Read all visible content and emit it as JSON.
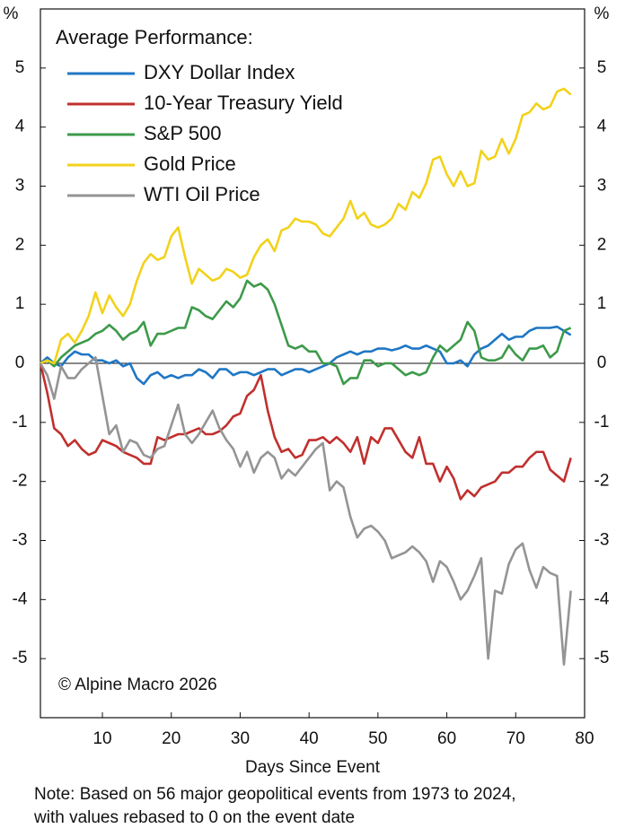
{
  "chart_data": {
    "type": "line",
    "legend_title": "Average Performance:",
    "y_unit": "%",
    "y2_unit": "%",
    "xlabel": "Days Since Event",
    "source": "© Alpine Macro 2026",
    "note": [
      "Note: Based on 56 major geopolitical events from 1973 to 2024,",
      "with values rebased to 0 on the event date"
    ],
    "x": [
      1,
      2,
      3,
      4,
      5,
      6,
      7,
      8,
      9,
      10,
      11,
      12,
      13,
      14,
      15,
      16,
      17,
      18,
      19,
      20,
      21,
      22,
      23,
      24,
      25,
      26,
      27,
      28,
      29,
      30,
      31,
      32,
      33,
      34,
      35,
      36,
      37,
      38,
      39,
      40,
      41,
      42,
      43,
      44,
      45,
      46,
      47,
      48,
      49,
      50,
      51,
      52,
      53,
      54,
      55,
      56,
      57,
      58,
      59,
      60,
      61,
      62,
      63,
      64,
      65,
      66,
      67,
      68,
      69,
      70,
      71,
      72,
      73,
      74,
      75,
      76,
      77,
      78
    ],
    "xlim": [
      1,
      80
    ],
    "xticks": [
      10,
      20,
      30,
      40,
      50,
      60,
      70,
      80
    ],
    "ylim": [
      -6,
      6
    ],
    "yticks": [
      -5,
      -4,
      -3,
      -2,
      -1,
      0,
      1,
      2,
      3,
      4,
      5
    ],
    "y2lim": [
      -6,
      6
    ],
    "y2ticks": [
      -5,
      -4,
      -3,
      -2,
      -1,
      0,
      1,
      2,
      3,
      4,
      5
    ],
    "legend": "upper left",
    "series": [
      {
        "name": "DXY Dollar Index",
        "color": "#1f77c4",
        "values": [
          0,
          0.1,
          0,
          -0.05,
          0.1,
          0.2,
          0.15,
          0.15,
          0.05,
          0.05,
          0,
          0.05,
          -0.05,
          0,
          -0.25,
          -0.35,
          -0.2,
          -0.15,
          -0.25,
          -0.2,
          -0.25,
          -0.2,
          -0.2,
          -0.1,
          -0.15,
          -0.25,
          -0.1,
          -0.1,
          -0.2,
          -0.15,
          -0.15,
          -0.2,
          -0.15,
          -0.1,
          -0.1,
          -0.2,
          -0.15,
          -0.1,
          -0.1,
          -0.15,
          -0.1,
          -0.05,
          0,
          0.1,
          0.15,
          0.2,
          0.15,
          0.2,
          0.2,
          0.25,
          0.25,
          0.22,
          0.25,
          0.3,
          0.25,
          0.25,
          0.3,
          0.25,
          0.2,
          0,
          0,
          0.05,
          -0.05,
          0.15,
          0.25,
          0.3,
          0.4,
          0.5,
          0.4,
          0.45,
          0.45,
          0.55,
          0.6,
          0.6,
          0.6,
          0.62,
          0.55,
          0.48
        ]
      },
      {
        "name": "10-Year Treasury Yield",
        "color": "#c0302e",
        "values": [
          0,
          -0.5,
          -1.1,
          -1.2,
          -1.4,
          -1.3,
          -1.45,
          -1.55,
          -1.5,
          -1.3,
          -1.35,
          -1.4,
          -1.5,
          -1.55,
          -1.6,
          -1.7,
          -1.7,
          -1.25,
          -1.3,
          -1.25,
          -1.2,
          -1.2,
          -1.15,
          -1.1,
          -1.2,
          -1.2,
          -1.15,
          -1.05,
          -0.9,
          -0.85,
          -0.55,
          -0.45,
          -0.2,
          -0.8,
          -1.25,
          -1.5,
          -1.45,
          -1.6,
          -1.55,
          -1.3,
          -1.3,
          -1.25,
          -1.35,
          -1.25,
          -1.35,
          -1.5,
          -1.25,
          -1.7,
          -1.25,
          -1.35,
          -1.1,
          -1.1,
          -1.3,
          -1.5,
          -1.6,
          -1.25,
          -1.7,
          -1.7,
          -2,
          -1.75,
          -1.95,
          -2.3,
          -2.15,
          -2.25,
          -2.1,
          -2.05,
          -2,
          -1.85,
          -1.85,
          -1.75,
          -1.75,
          -1.6,
          -1.5,
          -1.5,
          -1.8,
          -1.9,
          -2,
          -1.6
        ]
      },
      {
        "name": "S&P 500",
        "color": "#3d9a4a",
        "values": [
          0,
          0.05,
          -0.05,
          0.1,
          0.2,
          0.3,
          0.35,
          0.4,
          0.5,
          0.55,
          0.65,
          0.55,
          0.4,
          0.5,
          0.55,
          0.7,
          0.3,
          0.5,
          0.5,
          0.55,
          0.6,
          0.6,
          0.95,
          0.9,
          0.8,
          0.75,
          0.9,
          1.05,
          0.95,
          1.1,
          1.4,
          1.3,
          1.35,
          1.25,
          1,
          0.65,
          0.3,
          0.25,
          0.3,
          0.2,
          0.2,
          0,
          0,
          -0.05,
          -0.35,
          -0.25,
          -0.25,
          0.05,
          0.05,
          -0.05,
          0,
          0,
          -0.1,
          -0.2,
          -0.15,
          -0.2,
          -0.15,
          0.1,
          0.3,
          0.2,
          0.3,
          0.4,
          0.7,
          0.55,
          0.1,
          0.05,
          0.05,
          0.1,
          0.3,
          0.15,
          0.05,
          0.25,
          0.25,
          0.3,
          0.1,
          0.2,
          0.55,
          0.6
        ]
      },
      {
        "name": "Gold Price",
        "color": "#f2d21b",
        "values": [
          0,
          0.05,
          0,
          0.4,
          0.5,
          0.35,
          0.55,
          0.8,
          1.2,
          0.85,
          1.15,
          0.95,
          0.8,
          1,
          1.4,
          1.7,
          1.85,
          1.75,
          1.8,
          2.15,
          2.3,
          1.8,
          1.35,
          1.6,
          1.5,
          1.4,
          1.45,
          1.6,
          1.55,
          1.45,
          1.5,
          1.8,
          2,
          2.1,
          1.9,
          2.25,
          2.3,
          2.45,
          2.4,
          2.4,
          2.35,
          2.2,
          2.15,
          2.3,
          2.45,
          2.75,
          2.45,
          2.55,
          2.35,
          2.3,
          2.35,
          2.45,
          2.7,
          2.6,
          2.9,
          2.8,
          3.05,
          3.45,
          3.5,
          3.2,
          3,
          3.25,
          3,
          3.05,
          3.6,
          3.45,
          3.5,
          3.8,
          3.55,
          3.8,
          4.2,
          4.25,
          4.4,
          4.3,
          4.35,
          4.6,
          4.65,
          4.55
        ]
      },
      {
        "name": "WTI Oil Price",
        "color": "#949494",
        "values": [
          0,
          -0.2,
          -0.6,
          -0.05,
          -0.25,
          -0.25,
          -0.1,
          0,
          0.1,
          -0.55,
          -1.2,
          -1.05,
          -1.5,
          -1.3,
          -1.35,
          -1.55,
          -1.6,
          -1.45,
          -1.4,
          -1.05,
          -0.7,
          -1.2,
          -1.35,
          -1.2,
          -1,
          -0.8,
          -1.1,
          -1.3,
          -1.45,
          -1.75,
          -1.5,
          -1.85,
          -1.6,
          -1.5,
          -1.6,
          -1.95,
          -1.8,
          -1.9,
          -1.75,
          -1.6,
          -1.45,
          -1.35,
          -2.15,
          -2,
          -2.1,
          -2.6,
          -2.95,
          -2.8,
          -2.75,
          -2.85,
          -3,
          -3.3,
          -3.25,
          -3.2,
          -3.1,
          -3.2,
          -3.35,
          -3.7,
          -3.35,
          -3.45,
          -3.7,
          -4,
          -3.85,
          -3.6,
          -3.3,
          -5,
          -3.85,
          -3.9,
          -3.4,
          -3.15,
          -3.05,
          -3.5,
          -3.8,
          -3.45,
          -3.55,
          -3.6,
          -5.1,
          -3.85
        ]
      }
    ]
  }
}
